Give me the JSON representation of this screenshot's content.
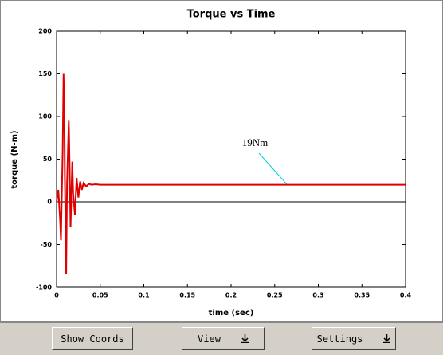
{
  "chart_data": {
    "type": "line",
    "title": "Torque vs Time",
    "x_label": "time (sec)",
    "y_label": "torque (N-m)",
    "xlim": [
      0,
      0.4
    ],
    "xticks": [
      0,
      0.05,
      0.1,
      0.15,
      0.2,
      0.25,
      0.3,
      0.35,
      0.4
    ],
    "ylim": [
      -100,
      200
    ],
    "yticks": [
      -100,
      -50,
      0,
      50,
      100,
      150,
      200
    ],
    "annotation": "19Nm",
    "series": [
      {
        "color": "#e00000",
        "x": [
          0,
          0.002,
          0.004,
          0.005,
          0.007,
          0.008,
          0.009,
          0.0095,
          0.011,
          0.012,
          0.014,
          0.015,
          0.016,
          0.018,
          0.019,
          0.021,
          0.023,
          0.025,
          0.027,
          0.029,
          0.031,
          0.034,
          0.037,
          0.04,
          0.045,
          0.05,
          0.1,
          0.2,
          0.3,
          0.4
        ],
        "y": [
          0,
          14,
          -20,
          -45,
          60,
          150,
          100,
          30,
          -85,
          20,
          95,
          40,
          -30,
          47,
          10,
          -15,
          28,
          5,
          24,
          14,
          22,
          18,
          21,
          20,
          20.5,
          20,
          20,
          20,
          20,
          20
        ]
      }
    ]
  },
  "toolbar": {
    "buttons": [
      "Show Coords",
      "View",
      "Settings"
    ]
  }
}
